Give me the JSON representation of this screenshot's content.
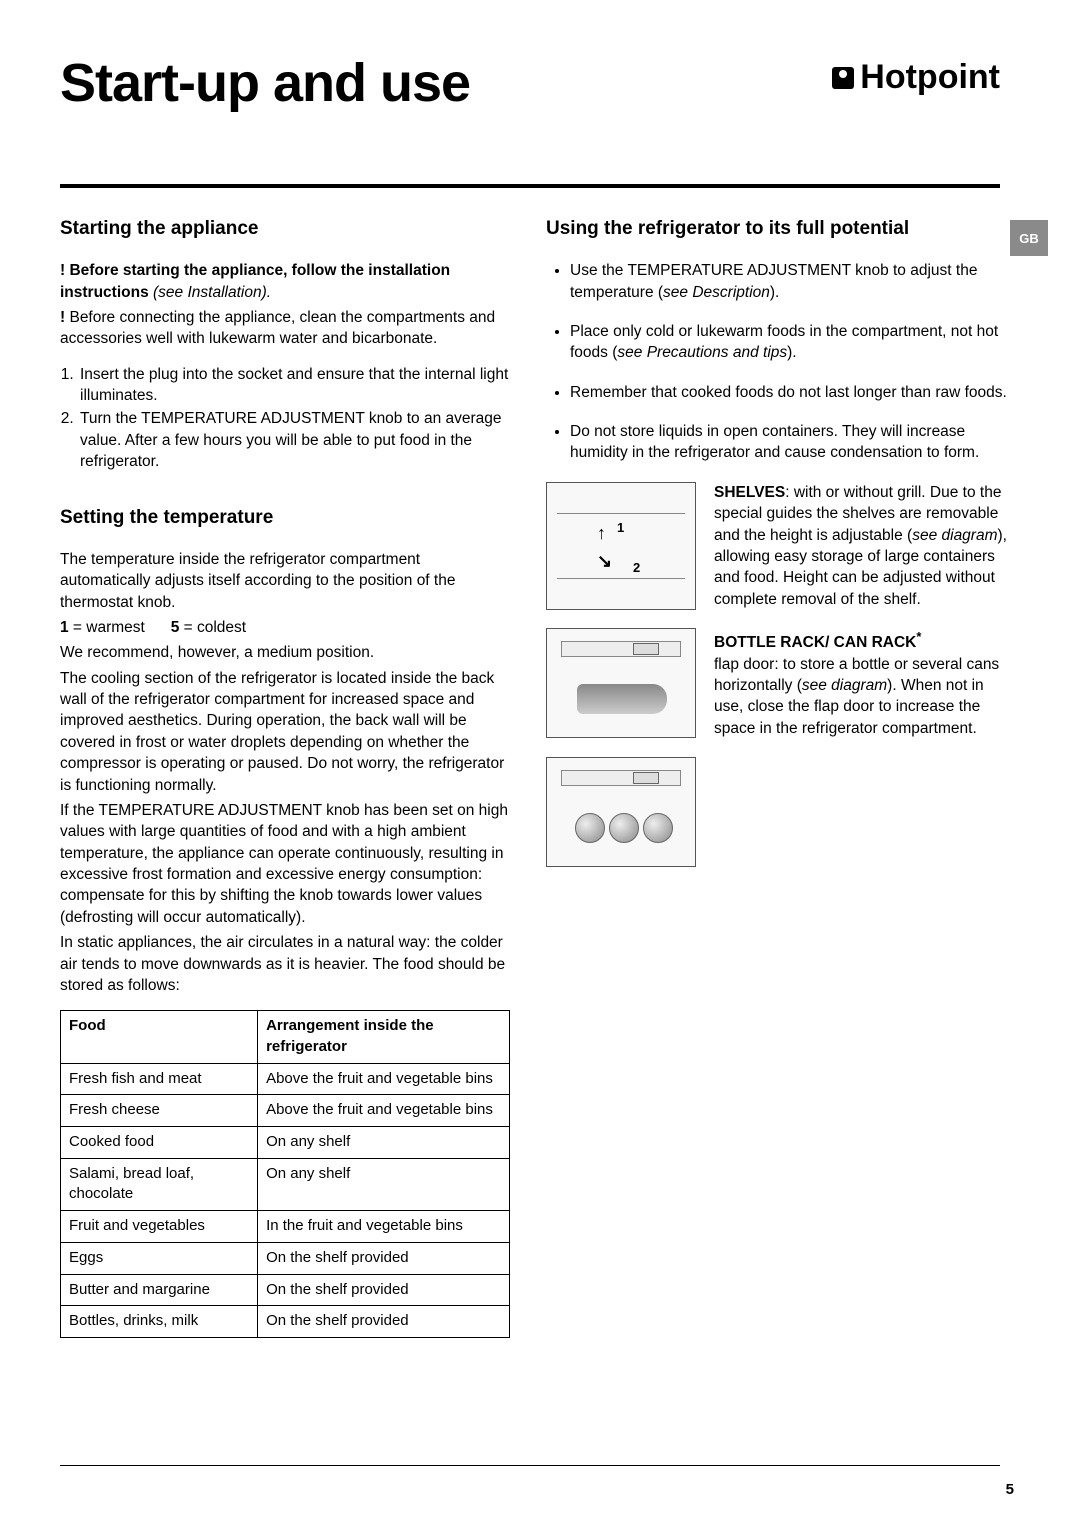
{
  "page": {
    "title": "Start-up and use",
    "brand": "Hotpoint",
    "side_tab": "GB",
    "page_number": "5"
  },
  "left": {
    "starting": {
      "heading": "Starting the appliance",
      "warn1_bold": "! Before starting the appliance, follow the installation instructions",
      "warn1_rest": " (see Installation).",
      "warn2_prefix": "!",
      "warn2_text": " Before connecting the appliance, clean the compartments and accessories well with lukewarm water and bicarbonate.",
      "step1": "Insert the plug into the socket and ensure that the internal light illuminates.",
      "step2": "Turn the TEMPERATURE ADJUSTMENT knob to an average value. After a few hours you will be able to put food in the refrigerator."
    },
    "setting": {
      "heading": "Setting the temperature",
      "p1": "The temperature inside the refrigerator compartment automatically adjusts itself according to the position of the thermostat knob.",
      "scale_1_label": "1",
      "scale_1_text": " = warmest",
      "scale_5_label": "5",
      "scale_5_text": " = coldest",
      "p2": "We recommend, however, a medium position.",
      "p3": "The cooling section of the refrigerator is located inside the back wall of the refrigerator compartment for increased space and improved aesthetics. During operation, the back wall will be covered in frost or water droplets depending on whether the compressor is operating or paused. Do not worry, the refrigerator is functioning normally.",
      "p4": "If the TEMPERATURE ADJUSTMENT knob has been set on high values with large quantities of food and with a high ambient temperature, the appliance can operate continuously, resulting in excessive frost formation and excessive energy consumption: compensate for this by shifting the knob towards lower values (defrosting will occur automatically).",
      "p5": "In static appliances, the air circulates in a natural way: the colder air tends to move downwards as it is heavier. The food should be stored as follows:"
    },
    "table": {
      "col1": "Food",
      "col2": "Arrangement inside the refrigerator",
      "rows": [
        {
          "food": "Fresh fish and meat",
          "arr": "Above the fruit and vegetable bins"
        },
        {
          "food": "Fresh cheese",
          "arr": "Above the fruit and vegetable bins"
        },
        {
          "food": "Cooked food",
          "arr": "On any shelf"
        },
        {
          "food": "Salami, bread loaf, chocolate",
          "arr": "On any shelf"
        },
        {
          "food": "Fruit and vegetables",
          "arr": "In the fruit and vegetable bins"
        },
        {
          "food": "Eggs",
          "arr": "On the shelf provided"
        },
        {
          "food": "Butter and margarine",
          "arr": "On the shelf provided"
        },
        {
          "food": "Bottles, drinks, milk",
          "arr": "On the shelf provided"
        }
      ]
    }
  },
  "right": {
    "heading": "Using the refrigerator to its full potential",
    "bullets": {
      "b1a": "Use the TEMPERATURE ADJUSTMENT knob to adjust the temperature (",
      "b1b": "see Description",
      "b1c": ").",
      "b2a": "Place only cold or lukewarm foods in the compartment, not hot foods (",
      "b2b": "see Precautions and tips",
      "b2c": ").",
      "b3": "Remember that cooked foods do not last longer than raw foods.",
      "b4": "Do not store liquids in open containers. They will increase humidity in the refrigerator and cause condensation to form."
    },
    "shelves": {
      "title": "SHELVES",
      "text_a": ": with or without grill. Due to the special guides the shelves are removable and the height is adjustable (",
      "text_b": "see diagram",
      "text_c": "), allowing easy storage of large containers and food. Height can be adjusted without complete removal of the shelf.",
      "num1": "1",
      "num2": "2"
    },
    "rack": {
      "title": "BOTTLE RACK/ CAN RACK",
      "star": "*",
      "text_a": "flap door: to store a bottle or several cans horizontally (",
      "text_b": "see diagram",
      "text_c": "). When not in use, close the flap door to increase the space in the refrigerator compartment."
    }
  }
}
